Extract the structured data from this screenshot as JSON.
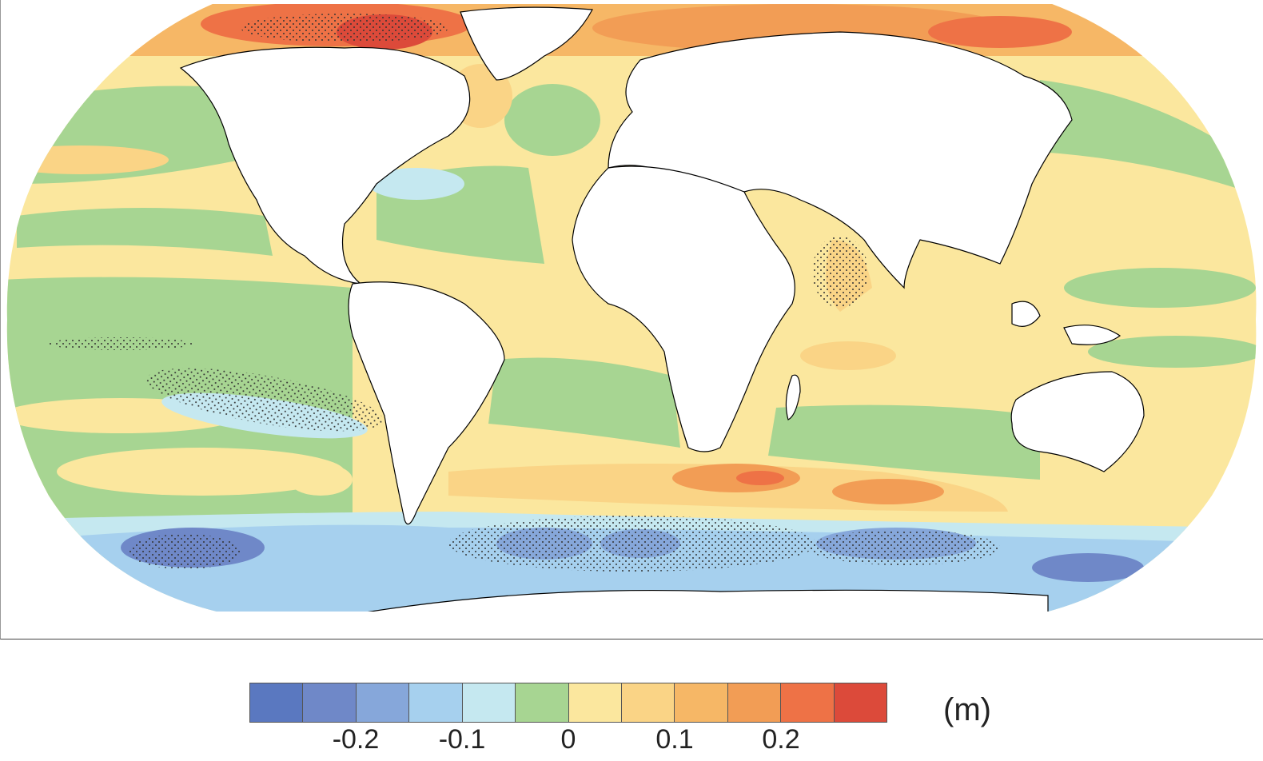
{
  "map": {
    "projection": "Robinson",
    "stippling": true,
    "land_color": "#ffffff",
    "coastline_color": "#000000"
  },
  "colorbar": {
    "colors": [
      "#5a78c0",
      "#6f88c8",
      "#86a7da",
      "#a6d0ee",
      "#c5e8f0",
      "#a7d592",
      "#fbe79e",
      "#fad486",
      "#f6b766",
      "#f29d55",
      "#ee7246",
      "#dc4a3a"
    ],
    "tick_labels": [
      "-0.2",
      "-0.1",
      "0",
      "0.1",
      "0.2"
    ],
    "units": "(m)"
  }
}
